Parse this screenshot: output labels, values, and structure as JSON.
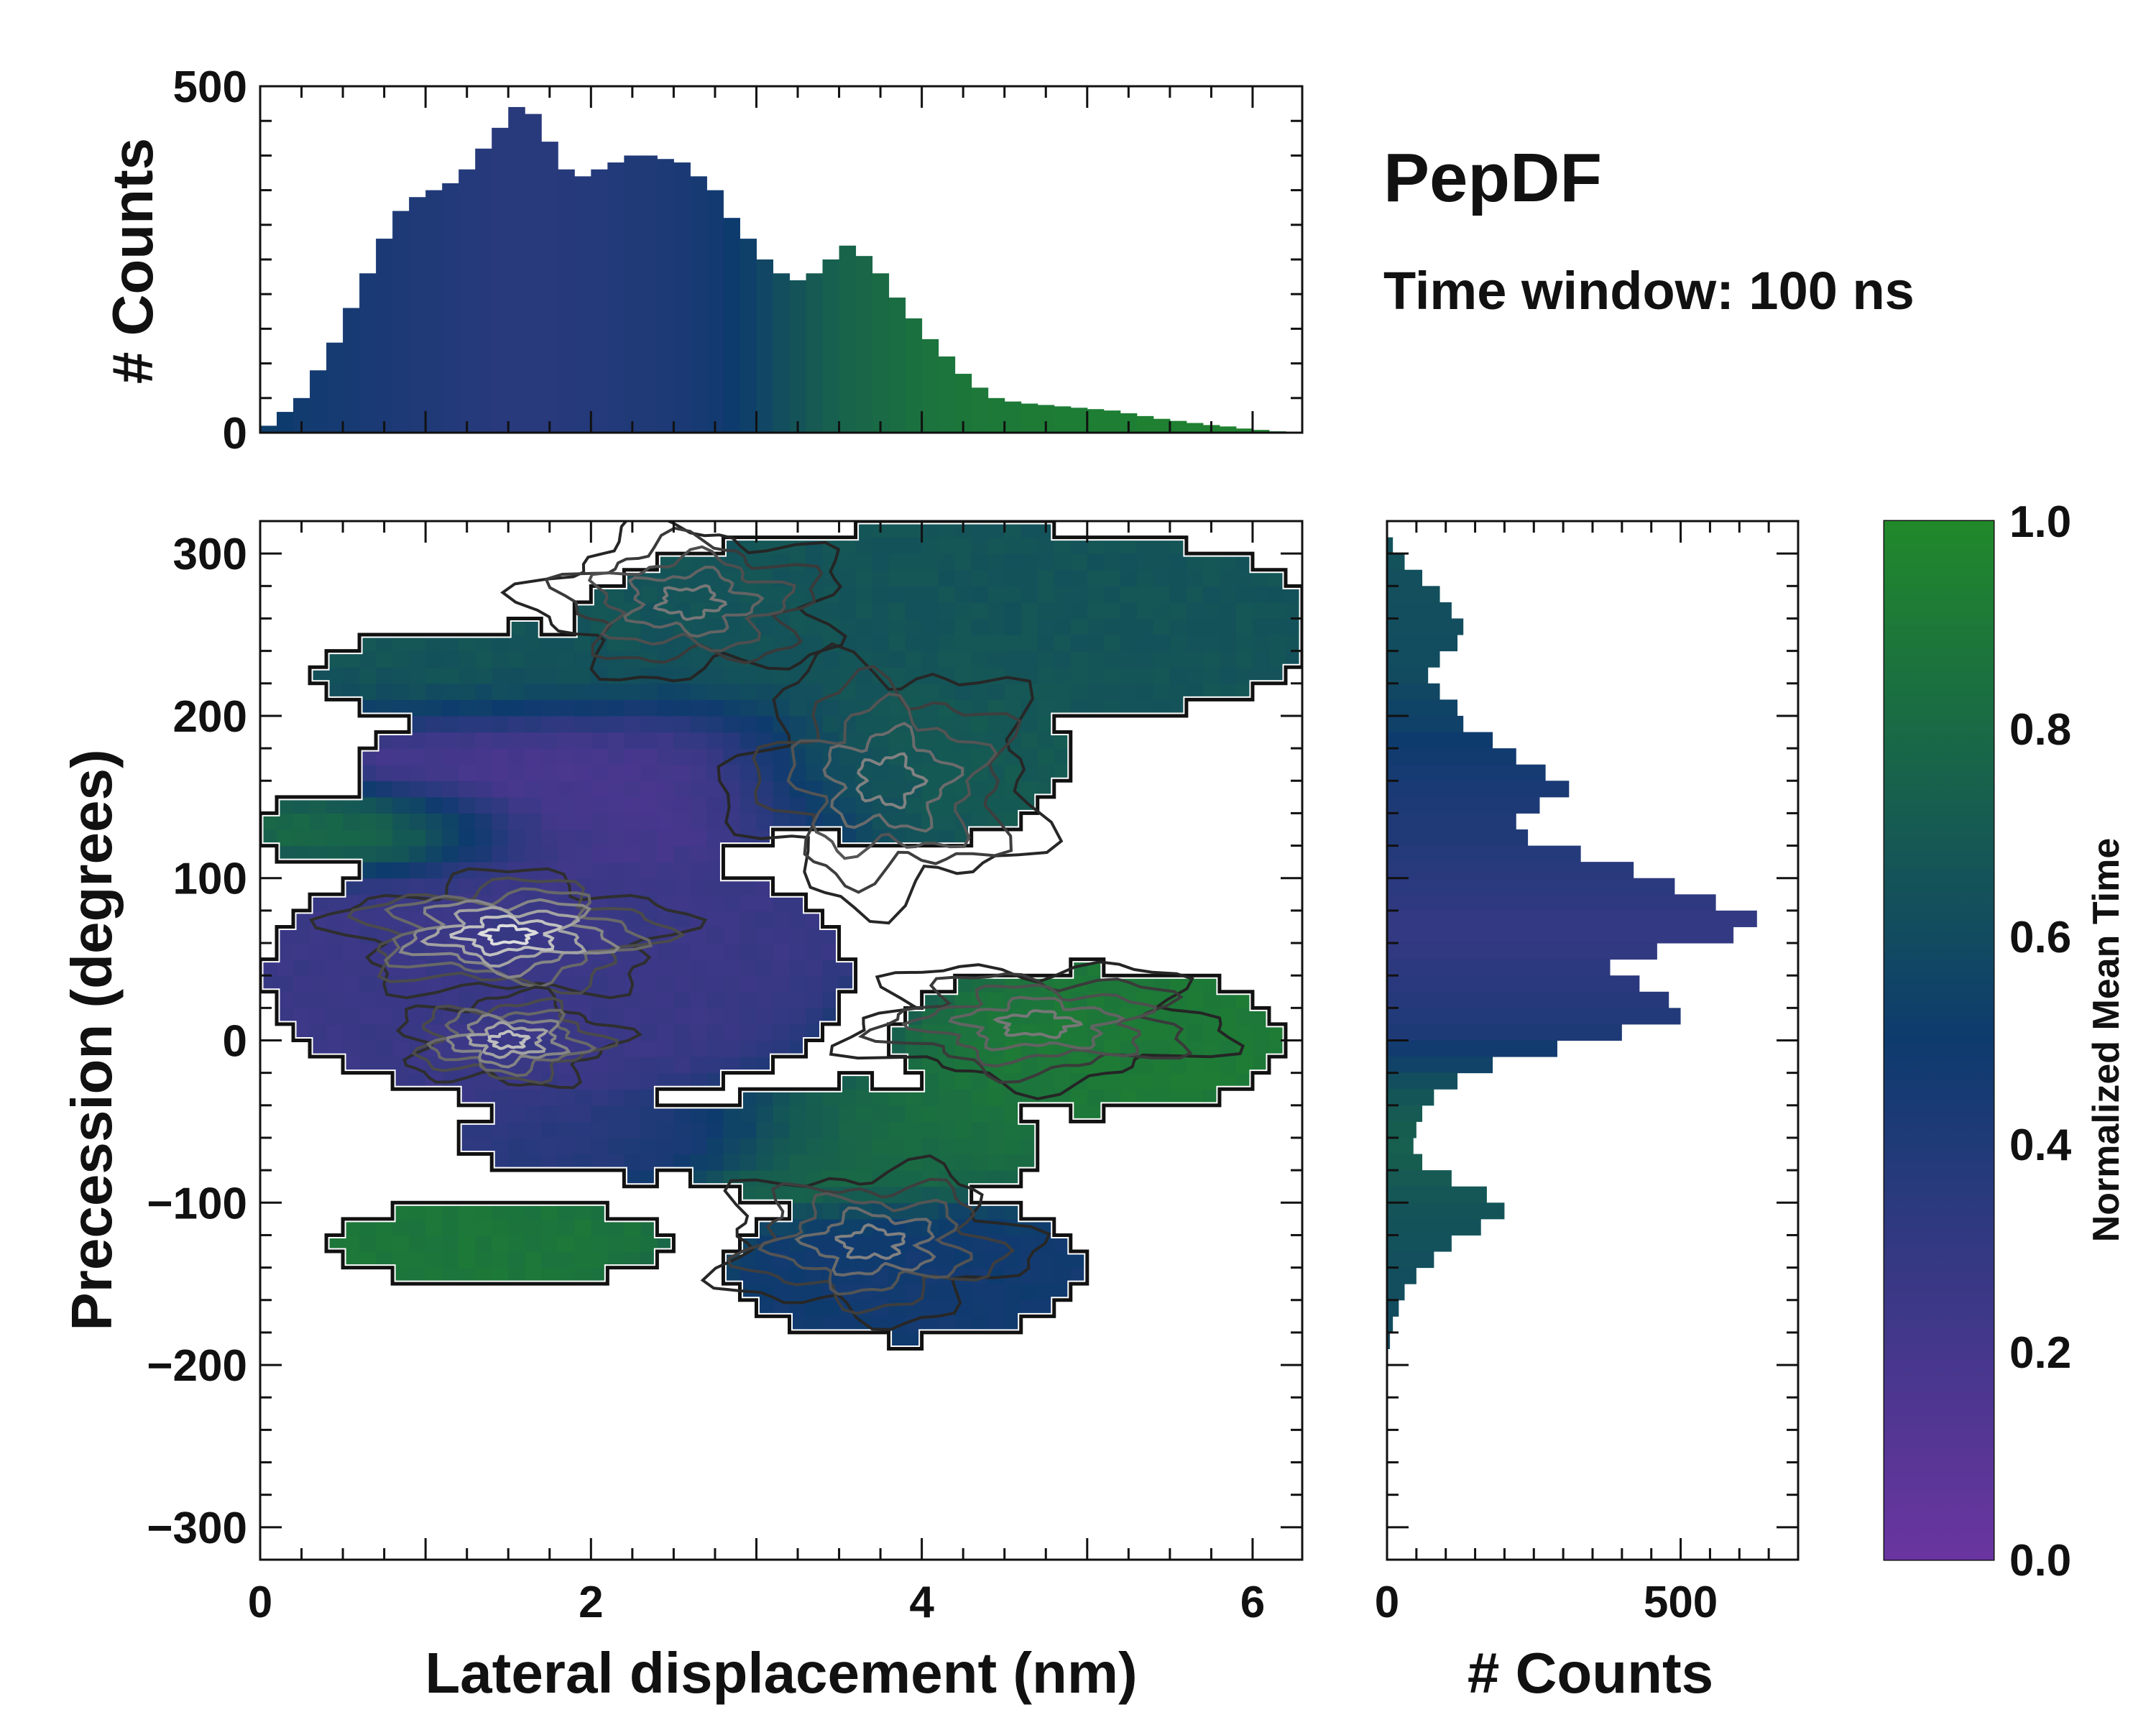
{
  "title": "PepDF",
  "subtitle": "Time window: 100 ns",
  "colors": {
    "low": "#6a35a0",
    "mid": "#0e3b6e",
    "high": "#21892a",
    "contour_outer": "#111111",
    "contour_inner": "#dddddd"
  },
  "chart_data": [
    {
      "id": "top_histogram",
      "type": "bar",
      "ylabel": "# Counts",
      "xlim": [
        0,
        6.3
      ],
      "ylim": [
        0,
        500
      ],
      "yticks": [
        0,
        500
      ],
      "x": [
        0.05,
        0.15,
        0.25,
        0.35,
        0.45,
        0.55,
        0.65,
        0.75,
        0.85,
        0.95,
        1.05,
        1.15,
        1.25,
        1.35,
        1.45,
        1.55,
        1.65,
        1.75,
        1.85,
        1.95,
        2.05,
        2.15,
        2.25,
        2.35,
        2.45,
        2.55,
        2.65,
        2.75,
        2.85,
        2.95,
        3.05,
        3.15,
        3.25,
        3.35,
        3.45,
        3.55,
        3.65,
        3.75,
        3.85,
        3.95,
        4.05,
        4.15,
        4.25,
        4.35,
        4.45,
        4.55,
        4.65,
        4.75,
        4.85,
        4.95,
        5.05,
        5.15,
        5.25,
        5.35,
        5.45,
        5.55,
        5.65,
        5.75,
        5.85,
        5.95,
        6.05,
        6.15
      ],
      "values": [
        10,
        30,
        50,
        90,
        130,
        180,
        230,
        280,
        320,
        340,
        350,
        360,
        380,
        410,
        440,
        470,
        460,
        420,
        380,
        370,
        380,
        390,
        400,
        400,
        395,
        390,
        370,
        350,
        310,
        280,
        250,
        230,
        220,
        230,
        250,
        270,
        255,
        230,
        195,
        165,
        135,
        110,
        85,
        65,
        50,
        45,
        42,
        40,
        38,
        36,
        34,
        32,
        28,
        24,
        20,
        17,
        14,
        11,
        9,
        6,
        4,
        2
      ],
      "color_values": [
        0.52,
        0.5,
        0.48,
        0.47,
        0.46,
        0.45,
        0.44,
        0.43,
        0.42,
        0.41,
        0.4,
        0.39,
        0.38,
        0.37,
        0.36,
        0.36,
        0.36,
        0.36,
        0.37,
        0.38,
        0.38,
        0.39,
        0.4,
        0.41,
        0.42,
        0.43,
        0.45,
        0.47,
        0.5,
        0.53,
        0.57,
        0.62,
        0.66,
        0.7,
        0.73,
        0.76,
        0.78,
        0.8,
        0.82,
        0.84,
        0.86,
        0.87,
        0.88,
        0.89,
        0.9,
        0.9,
        0.91,
        0.91,
        0.92,
        0.92,
        0.93,
        0.93,
        0.93,
        0.94,
        0.94,
        0.94,
        0.95,
        0.95,
        0.95,
        0.95,
        0.95,
        0.95
      ]
    },
    {
      "id": "main_heatmap",
      "type": "heatmap",
      "xlabel": "Lateral displacement (nm)",
      "ylabel": "Precession (degrees)",
      "xlim": [
        0,
        6.3
      ],
      "ylim": [
        -320,
        320
      ],
      "xticks": [
        0,
        2,
        4,
        6
      ],
      "yticks": [
        -300,
        -200,
        -100,
        0,
        100,
        200,
        300
      ],
      "ytick_labels": [
        "−300",
        "−200",
        "−100",
        "0",
        "100",
        "200",
        "300"
      ],
      "bin_x": 0.1,
      "bin_y": 10,
      "regions": [
        {
          "cx": 4.2,
          "cy": 255,
          "rx": 2.3,
          "ry": 62,
          "value": 0.68
        },
        {
          "cx": 1.6,
          "cy": 225,
          "rx": 1.3,
          "ry": 30,
          "value": 0.7
        },
        {
          "cx": 3.9,
          "cy": 175,
          "rx": 1.0,
          "ry": 55,
          "value": 0.72
        },
        {
          "cx": 0.7,
          "cy": 130,
          "rx": 0.8,
          "ry": 25,
          "value": 0.88
        },
        {
          "cx": 2.0,
          "cy": 160,
          "rx": 1.4,
          "ry": 55,
          "value": 0.2
        },
        {
          "cx": 1.8,
          "cy": 40,
          "rx": 1.75,
          "ry": 80,
          "value": 0.28
        },
        {
          "cx": 2.3,
          "cy": -60,
          "rx": 1.1,
          "ry": 25,
          "value": 0.38
        },
        {
          "cx": 5.0,
          "cy": 0,
          "rx": 1.2,
          "ry": 45,
          "value": 0.92
        },
        {
          "cx": 3.6,
          "cy": -65,
          "rx": 1.1,
          "ry": 40,
          "value": 0.85
        },
        {
          "cx": 1.45,
          "cy": -125,
          "rx": 1.05,
          "ry": 25,
          "value": 0.9
        },
        {
          "cx": 3.9,
          "cy": -140,
          "rx": 1.1,
          "ry": 45,
          "value": 0.5
        }
      ],
      "contour_peaks": [
        {
          "cx": 1.5,
          "cy": 65,
          "rx": 0.55,
          "ry": 20,
          "level": 1.0
        },
        {
          "cx": 1.5,
          "cy": 0,
          "rx": 0.35,
          "ry": 15,
          "level": 0.85
        },
        {
          "cx": 3.7,
          "cy": -125,
          "rx": 0.5,
          "ry": 25,
          "level": 0.55
        },
        {
          "cx": 4.7,
          "cy": 10,
          "rx": 0.6,
          "ry": 20,
          "level": 0.5
        },
        {
          "cx": 3.8,
          "cy": 160,
          "rx": 0.5,
          "ry": 40,
          "level": 0.55
        },
        {
          "cx": 2.6,
          "cy": 270,
          "rx": 0.5,
          "ry": 25,
          "level": 0.5
        }
      ]
    },
    {
      "id": "right_histogram",
      "type": "bar",
      "orientation": "horizontal",
      "xlabel": "# Counts",
      "xlim": [
        0,
        700
      ],
      "xticks": [
        0,
        500
      ],
      "y": [
        305,
        295,
        285,
        275,
        265,
        255,
        245,
        235,
        225,
        215,
        205,
        195,
        185,
        175,
        165,
        155,
        145,
        135,
        125,
        115,
        105,
        95,
        85,
        75,
        65,
        55,
        45,
        35,
        25,
        15,
        5,
        -5,
        -15,
        -25,
        -35,
        -45,
        -55,
        -65,
        -75,
        -85,
        -95,
        -105,
        -115,
        -125,
        -135,
        -145,
        -155,
        -165,
        -175,
        -185
      ],
      "values": [
        10,
        30,
        60,
        90,
        110,
        130,
        120,
        90,
        70,
        90,
        120,
        130,
        180,
        220,
        270,
        310,
        260,
        220,
        240,
        330,
        420,
        490,
        560,
        630,
        590,
        460,
        380,
        430,
        480,
        500,
        400,
        290,
        180,
        120,
        80,
        60,
        50,
        45,
        60,
        110,
        170,
        200,
        160,
        110,
        80,
        50,
        30,
        20,
        10,
        5
      ],
      "color_values": [
        0.64,
        0.64,
        0.63,
        0.63,
        0.62,
        0.62,
        0.61,
        0.61,
        0.6,
        0.58,
        0.56,
        0.54,
        0.5,
        0.48,
        0.46,
        0.44,
        0.42,
        0.41,
        0.4,
        0.38,
        0.36,
        0.34,
        0.32,
        0.3,
        0.3,
        0.31,
        0.33,
        0.35,
        0.37,
        0.39,
        0.42,
        0.48,
        0.55,
        0.62,
        0.67,
        0.7,
        0.72,
        0.73,
        0.72,
        0.7,
        0.68,
        0.66,
        0.65,
        0.64,
        0.63,
        0.62,
        0.62,
        0.61,
        0.61,
        0.61
      ]
    },
    {
      "id": "colorbar",
      "type": "colorbar",
      "label": "Normalized Mean Time",
      "range": [
        0.0,
        1.0
      ],
      "ticks": [
        0.0,
        0.2,
        0.4,
        0.6,
        0.8,
        1.0
      ],
      "tick_labels": [
        "0.0",
        "0.2",
        "0.4",
        "0.6",
        "0.8",
        "1.0"
      ]
    }
  ]
}
